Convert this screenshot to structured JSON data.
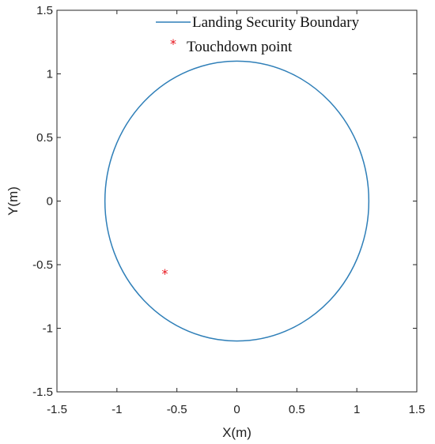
{
  "chart_data": {
    "type": "scatter",
    "xlabel": "X(m)",
    "ylabel": "Y(m)",
    "xlim": [
      -1.5,
      1.5
    ],
    "ylim": [
      -1.5,
      1.5
    ],
    "xticks": [
      "-1.5",
      "-1",
      "-0.5",
      "0",
      "0.5",
      "1",
      "1.5"
    ],
    "yticks": [
      "-1.5",
      "-1",
      "-0.5",
      "0",
      "0.5",
      "1",
      "1.5"
    ],
    "grid": false,
    "legend_position": "top-right",
    "series": [
      {
        "name": "Landing Security Boundary",
        "kind": "circle",
        "center": [
          0,
          0
        ],
        "radius": 1.1,
        "color": "#2f7fb8"
      },
      {
        "name": "Touchdown point",
        "kind": "point",
        "marker": "asterisk",
        "x": [
          -0.6
        ],
        "y": [
          -0.55
        ],
        "color": "#e8141c"
      }
    ]
  }
}
